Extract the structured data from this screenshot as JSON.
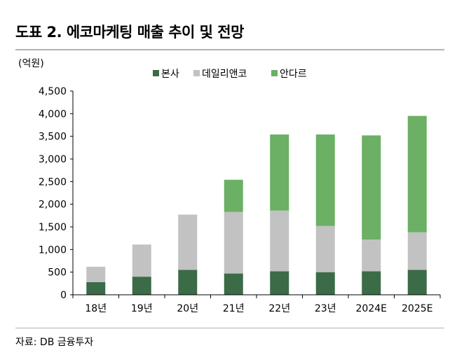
{
  "title": "도표 2. 에코마케팅 매출 추이 및 전망",
  "source": "자료: DB 금융투자",
  "chart_data": {
    "type": "bar",
    "stacked": true,
    "unit_label": "(억원)",
    "categories": [
      "18년",
      "19년",
      "20년",
      "21년",
      "22년",
      "23년",
      "2024E",
      "2025E"
    ],
    "series": [
      {
        "name": "본사",
        "color": "#3b6b47",
        "values": [
          280,
          400,
          550,
          470,
          520,
          500,
          520,
          550
        ]
      },
      {
        "name": "데일리앤코",
        "color": "#c2c2c2",
        "values": [
          340,
          710,
          1220,
          1360,
          1340,
          1020,
          700,
          830
        ]
      },
      {
        "name": "안다르",
        "color": "#6bb064",
        "values": [
          0,
          0,
          0,
          710,
          1680,
          2020,
          2300,
          2570
        ]
      }
    ],
    "ylim": [
      0,
      4500
    ],
    "yticks": [
      "0",
      "500",
      "1,000",
      "1,500",
      "2,000",
      "2,500",
      "3,000",
      "3,500",
      "4,000",
      "4,500"
    ],
    "ytick_values": [
      0,
      500,
      1000,
      1500,
      2000,
      2500,
      3000,
      3500,
      4000,
      4500
    ],
    "legend_position": "top"
  }
}
